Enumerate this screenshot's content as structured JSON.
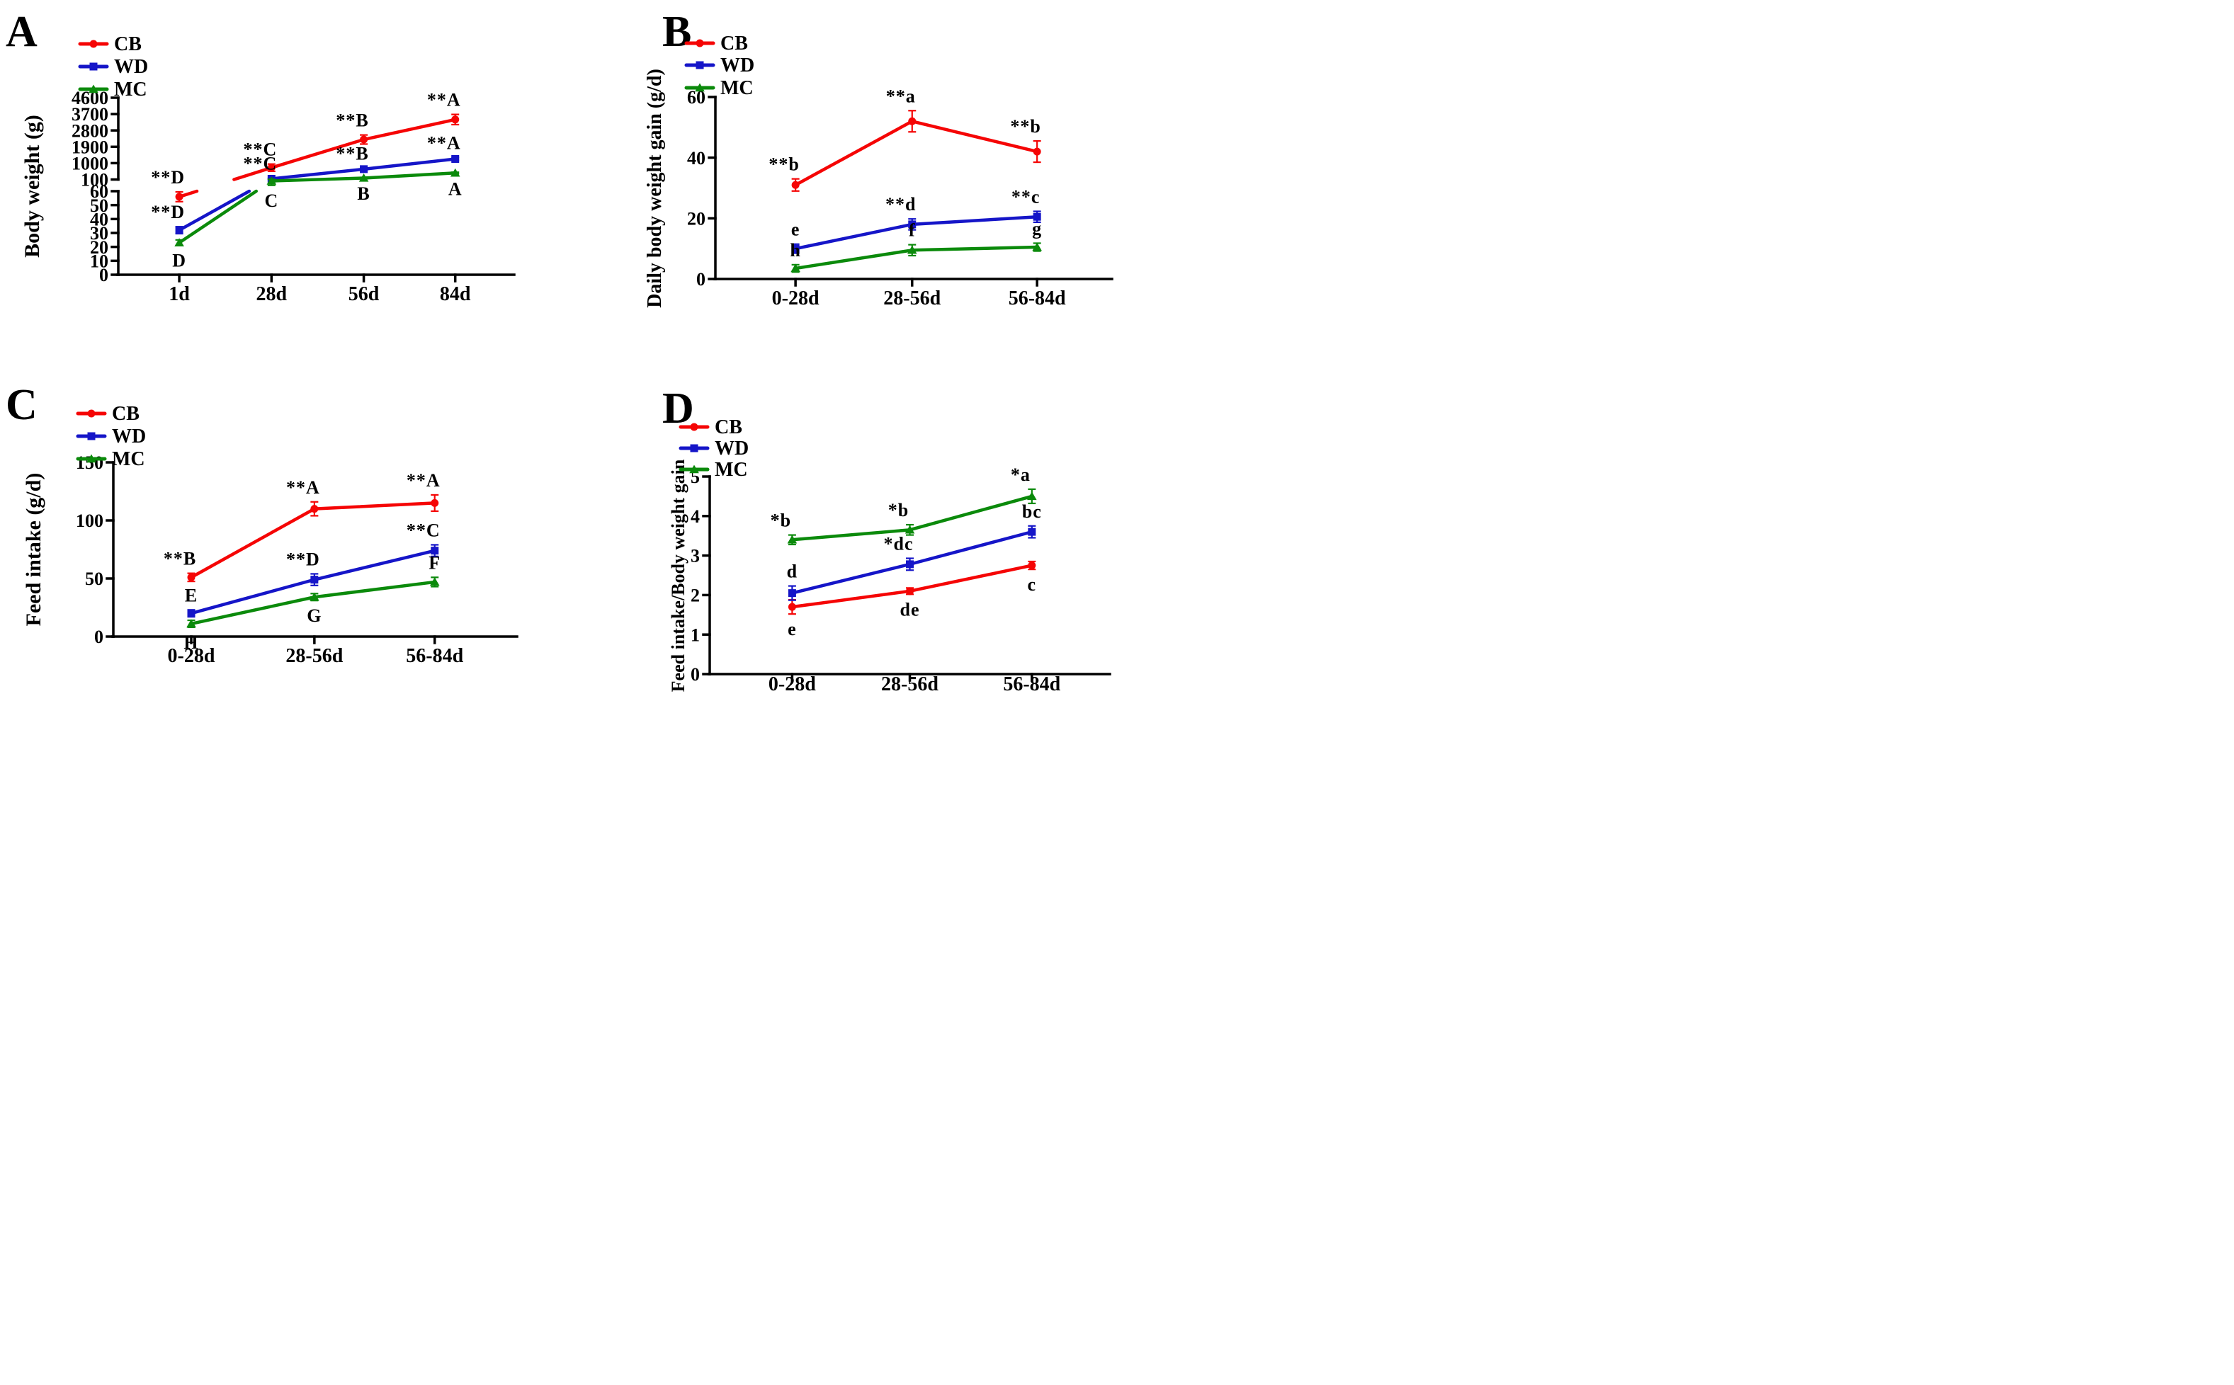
{
  "colors": {
    "cb": "#F50505",
    "wd": "#1515C8",
    "mc": "#0B8A0B",
    "axis": "#000000"
  },
  "chart_data": [
    {
      "id": "a",
      "panel_label": "A",
      "type": "line",
      "ylabel": "Body weight (g)",
      "xlabel": "",
      "categories": [
        "1d",
        "28d",
        "56d",
        "84d"
      ],
      "y_axis": {
        "type": "broken",
        "segments": [
          {
            "min": 0,
            "max": 60,
            "ticks": [
              0,
              10,
              20,
              30,
              40,
              50,
              60
            ]
          },
          {
            "min": 100,
            "max": 4600,
            "ticks": [
              100,
              1000,
              1900,
              2800,
              3700,
              4600
            ]
          }
        ]
      },
      "legend": [
        "CB",
        "WD",
        "MC"
      ],
      "series": [
        {
          "name": "CB",
          "color": "cb",
          "marker": "circle",
          "values": [
            56,
            750,
            2300,
            3400
          ],
          "errors": [
            3.5,
            200,
            250,
            280
          ],
          "point_labels": [
            "**D",
            "**C",
            "**B",
            "**A"
          ],
          "label_side": [
            "above",
            "above",
            "above",
            "above"
          ]
        },
        {
          "name": "WD",
          "color": "wd",
          "marker": "square",
          "values": [
            32,
            140,
            670,
            1230
          ],
          "errors": [
            2.5,
            30,
            60,
            80
          ],
          "point_labels": [
            "**D",
            "**C",
            "**B",
            "**A"
          ],
          "label_side": [
            "above",
            "above",
            "above",
            "above"
          ]
        },
        {
          "name": "MC",
          "color": "mc",
          "marker": "triangle",
          "values": [
            23,
            95,
            180,
            460
          ],
          "errors": [
            2,
            15,
            25,
            40
          ],
          "point_labels": [
            "D",
            "C",
            "B",
            "A"
          ],
          "label_side": [
            "below",
            "below",
            "below",
            "below"
          ]
        }
      ]
    },
    {
      "id": "b",
      "panel_label": "B",
      "type": "line",
      "ylabel": "Daily body weight gain (g/d)",
      "xlabel": "",
      "categories": [
        "0-28d",
        "28-56d",
        "56-84d"
      ],
      "y_axis": {
        "type": "linear",
        "min": 0,
        "max": 60,
        "ticks": [
          0,
          20,
          40,
          60
        ]
      },
      "legend": [
        "CB",
        "WD",
        "MC"
      ],
      "series": [
        {
          "name": "CB",
          "color": "cb",
          "marker": "circle",
          "values": [
            31,
            52,
            42
          ],
          "errors": [
            2,
            3.5,
            3.5
          ],
          "point_labels": [
            "**b",
            "**a",
            "**b"
          ],
          "label_side": [
            "above",
            "above",
            "above"
          ]
        },
        {
          "name": "WD",
          "color": "wd",
          "marker": "square",
          "values": [
            10,
            18,
            20.5
          ],
          "errors": [
            1.5,
            1.8,
            1.8
          ],
          "point_labels": [
            "e",
            "**d",
            "**c"
          ],
          "label_side": [
            "above",
            "above",
            "above"
          ]
        },
        {
          "name": "MC",
          "color": "mc",
          "marker": "triangle",
          "values": [
            3.5,
            9.5,
            10.5
          ],
          "errors": [
            1.2,
            1.8,
            1.3
          ],
          "point_labels": [
            "h",
            "f",
            "g"
          ],
          "label_side": [
            "above",
            "above",
            "above"
          ]
        }
      ]
    },
    {
      "id": "c",
      "panel_label": "C",
      "type": "line",
      "ylabel": "Feed intake (g/d)",
      "xlabel": "",
      "categories": [
        "0-28d",
        "28-56d",
        "56-84d"
      ],
      "y_axis": {
        "type": "linear",
        "min": 0,
        "max": 150,
        "ticks": [
          0,
          50,
          100,
          150
        ]
      },
      "legend": [
        "CB",
        "WD",
        "MC"
      ],
      "series": [
        {
          "name": "CB",
          "color": "cb",
          "marker": "circle",
          "values": [
            51,
            110,
            115
          ],
          "errors": [
            3.5,
            6,
            7
          ],
          "point_labels": [
            "**B",
            "**A",
            "**A"
          ],
          "label_side": [
            "above",
            "above",
            "above"
          ]
        },
        {
          "name": "WD",
          "color": "wd",
          "marker": "square",
          "values": [
            20,
            49,
            74
          ],
          "errors": [
            3,
            5,
            5
          ],
          "point_labels": [
            "E",
            "**D",
            "**C"
          ],
          "label_side": [
            "above",
            "above",
            "above"
          ]
        },
        {
          "name": "MC",
          "color": "mc",
          "marker": "triangle",
          "values": [
            11,
            34,
            47
          ],
          "errors": [
            3,
            3,
            4
          ],
          "point_labels": [
            "H",
            "G",
            "F"
          ],
          "label_side": [
            "below",
            "below",
            "above"
          ]
        }
      ]
    },
    {
      "id": "d",
      "panel_label": "D",
      "type": "line",
      "ylabel": "Feed intake/Body weight gain",
      "xlabel": "",
      "categories": [
        "0-28d",
        "28-56d",
        "56-84d"
      ],
      "y_axis": {
        "type": "linear",
        "min": 0,
        "max": 5,
        "ticks": [
          0,
          1,
          2,
          3,
          4,
          5
        ]
      },
      "legend": [
        "CB",
        "WD",
        "MC"
      ],
      "series": [
        {
          "name": "CB",
          "color": "cb",
          "marker": "circle",
          "values": [
            1.7,
            2.1,
            2.75
          ],
          "errors": [
            0.18,
            0.08,
            0.1
          ],
          "point_labels": [
            "e",
            "de",
            "c"
          ],
          "label_side": [
            "below",
            "below",
            "below"
          ]
        },
        {
          "name": "WD",
          "color": "wd",
          "marker": "square",
          "values": [
            2.05,
            2.78,
            3.6
          ],
          "errors": [
            0.18,
            0.15,
            0.15
          ],
          "point_labels": [
            "d",
            "*dc",
            "bc"
          ],
          "label_side": [
            "above",
            "above",
            "above"
          ]
        },
        {
          "name": "MC",
          "color": "mc",
          "marker": "triangle",
          "values": [
            3.4,
            3.65,
            4.5
          ],
          "errors": [
            0.12,
            0.13,
            0.18
          ],
          "point_labels": [
            "*b",
            "*b",
            "*a"
          ],
          "label_side": [
            "above",
            "above",
            "above"
          ]
        }
      ]
    }
  ]
}
